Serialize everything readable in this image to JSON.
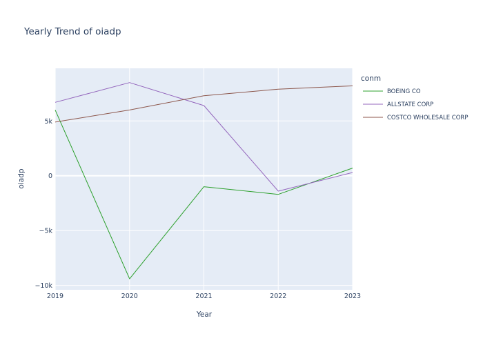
{
  "chart_data": {
    "type": "line",
    "title": "Yearly Trend of oiadp",
    "xlabel": "Year",
    "ylabel": "oiadp",
    "legend_title": "conm",
    "legend_position": "top-right",
    "grid": true,
    "x": [
      2019,
      2020,
      2021,
      2022,
      2023
    ],
    "xlim": [
      2019,
      2023
    ],
    "ylim": [
      -10400,
      9800
    ],
    "x_ticks": [
      {
        "value": 2019,
        "label": "2019"
      },
      {
        "value": 2020,
        "label": "2020"
      },
      {
        "value": 2021,
        "label": "2021"
      },
      {
        "value": 2022,
        "label": "2022"
      },
      {
        "value": 2023,
        "label": "2023"
      }
    ],
    "y_ticks": [
      {
        "value": 5000,
        "label": "5k"
      },
      {
        "value": 0,
        "label": "0"
      },
      {
        "value": -5000,
        "label": "−5k"
      },
      {
        "value": -10000,
        "label": "−10k"
      }
    ],
    "series": [
      {
        "name": "BOEING CO",
        "color": "#2ca02c",
        "values": [
          6000,
          -9400,
          -1000,
          -1700,
          700
        ]
      },
      {
        "name": "ALLSTATE CORP",
        "color": "#9467bd",
        "values": [
          6700,
          8500,
          6400,
          -1400,
          300
        ]
      },
      {
        "name": "COSTCO WHOLESALE CORP",
        "color": "#8c564b",
        "values": [
          4900,
          6000,
          7300,
          7900,
          8200
        ]
      }
    ]
  },
  "colors": {
    "plot_bg": "#e5ecf6",
    "grid": "#ffffff",
    "text": "#2a3f5f"
  }
}
